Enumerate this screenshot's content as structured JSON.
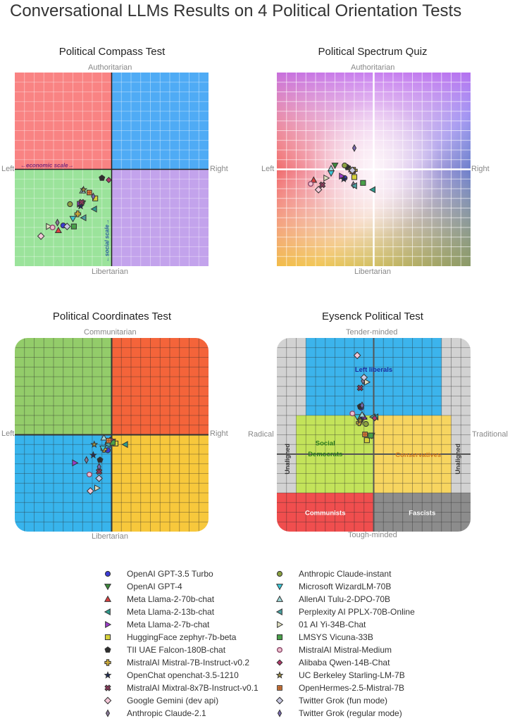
{
  "title": "Conversational LLMs Results on 4 Political Orientation Tests",
  "markers": {
    "OpenAI GPT-3.5 Turbo": {
      "shape": "circle",
      "color": "#3b3bd6"
    },
    "OpenAI GPT-4": {
      "shape": "triangle-down",
      "color": "#3c8a3c"
    },
    "Meta Llama-2-70b-chat": {
      "shape": "triangle-up",
      "color": "#d94040"
    },
    "Meta Llama-2-13b-chat": {
      "shape": "triangle-left",
      "color": "#2e9c8e"
    },
    "Meta Llama-2-7b-chat": {
      "shape": "triangle-right",
      "color": "#9b3cc8"
    },
    "HuggingFace zephyr-7b-beta": {
      "shape": "square",
      "color": "#d6d13a"
    },
    "TII UAE Falcon-180B-chat": {
      "shape": "pentagon",
      "color": "#2f2f2f"
    },
    "MistralAI Mistral-7B-Instruct-v0.2": {
      "shape": "plus",
      "color": "#c9a83a"
    },
    "OpenChat openchat-3.5-1210": {
      "shape": "star",
      "color": "#1d2b5a"
    },
    "MistralAI Mixtral-8x7B-Instruct-v0.1": {
      "shape": "x",
      "color": "#8a3a5a"
    },
    "Google Gemini (dev api)": {
      "shape": "diamond-wide",
      "color": "#f4c8d8"
    },
    "Anthropic Claude-2.1": {
      "shape": "diamond-thin",
      "color": "#8a7a9a"
    },
    "Anthropic Claude-instant": {
      "shape": "circle",
      "color": "#8aa040"
    },
    "Microsoft WizardLM-70B": {
      "shape": "triangle-down",
      "color": "#3cc8d8"
    },
    "AllenAI Tulu-2-DPO-70B": {
      "shape": "triangle-up",
      "color": "#a0d8d8"
    },
    "Perplexity AI PPLX-70B-Online": {
      "shape": "triangle-left",
      "color": "#4aa0a0"
    },
    "01 AI Yi-34B-Chat": {
      "shape": "triangle-right",
      "color": "#e0e0c0"
    },
    "LMSYS Vicuna-33B": {
      "shape": "square",
      "color": "#4aa04a"
    },
    "MistralAI Mistral-Medium": {
      "shape": "circle-open",
      "color": "#f0c0d0"
    },
    "Alibaba Qwen-14B-Chat": {
      "shape": "diamond-small",
      "color": "#b03a6a"
    },
    "UC Berkeley Starling-LM-7B": {
      "shape": "star",
      "color": "#a09040"
    },
    "OpenHermes-2.5-Mistral-7B": {
      "shape": "square-cross",
      "color": "#d8803a"
    },
    "Twitter Grok (fun mode)": {
      "shape": "diamond-wide",
      "color": "#c8c8e0"
    },
    "Twitter Grok (regular mode)": {
      "shape": "diamond-thin",
      "color": "#7a6ab0"
    }
  },
  "panels": {
    "compass": {
      "title": "Political Compass Test",
      "top": "Authoritarian",
      "bottom": "Libertarian",
      "left": "Left",
      "right": "Right",
      "econ_label": "←economic scale→",
      "social_label": "←social scale→"
    },
    "spectrum": {
      "title": "Political Spectrum Quiz",
      "top": "Authoritarian",
      "bottom": "Libertarian",
      "left": "Left",
      "right": "Right"
    },
    "coordinates": {
      "title": "Political Coordinates Test",
      "top": "Communitarian",
      "bottom": "Libertarian",
      "left": "Left",
      "right": "Right"
    },
    "eysenck": {
      "title": "Eysenck Political Test",
      "top": "Tender-minded",
      "bottom": "Tough-minded",
      "left": "Radical",
      "right": "Traditional",
      "regions": {
        "left_liberals": "Left liberals",
        "social_democrats_1": "Social",
        "social_democrats_2": "Democrats",
        "conservatives": "Conservatives",
        "communists": "Communists",
        "fascists": "Fascists",
        "unaligned": "Unaligned"
      }
    }
  },
  "legend": {
    "left": [
      "OpenAI GPT-3.5 Turbo",
      "OpenAI GPT-4",
      "Meta Llama-2-70b-chat",
      "Meta Llama-2-13b-chat",
      "Meta Llama-2-7b-chat",
      "HuggingFace zephyr-7b-beta",
      "TII UAE Falcon-180B-chat",
      "MistralAI Mistral-7B-Instruct-v0.2",
      "OpenChat openchat-3.5-1210",
      "MistralAI Mixtral-8x7B-Instruct-v0.1",
      "Google Gemini (dev api)",
      "Anthropic Claude-2.1"
    ],
    "right": [
      "Anthropic Claude-instant",
      "Microsoft WizardLM-70B",
      "AllenAI Tulu-2-DPO-70B",
      "Perplexity AI PPLX-70B-Online",
      "01 AI Yi-34B-Chat",
      "LMSYS Vicuna-33B",
      "MistralAI Mistral-Medium",
      "Alibaba Qwen-14B-Chat",
      "UC Berkeley Starling-LM-7B",
      "OpenHermes-2.5-Mistral-7B",
      "Twitter Grok (fun mode)",
      "Twitter Grok (regular mode)"
    ]
  },
  "chart_data": [
    {
      "type": "scatter",
      "title": "Political Compass Test",
      "xlabel": "Left ← economic scale → Right",
      "ylabel": "Libertarian ← social scale → Authoritarian",
      "xlim": [
        -10,
        10
      ],
      "ylim": [
        -10,
        10
      ],
      "grid": true,
      "points": [
        {
          "name": "OpenAI GPT-3.5 Turbo",
          "x": -5.0,
          "y": -5.8
        },
        {
          "name": "OpenAI GPT-4",
          "x": -3.0,
          "y": -3.5
        },
        {
          "name": "Meta Llama-2-70b-chat",
          "x": -5.5,
          "y": -6.3
        },
        {
          "name": "Meta Llama-2-13b-chat",
          "x": -1.8,
          "y": -4.1
        },
        {
          "name": "Meta Llama-2-7b-chat",
          "x": -3.3,
          "y": -3.6
        },
        {
          "name": "HuggingFace zephyr-7b-beta",
          "x": -1.7,
          "y": -3.0
        },
        {
          "name": "TII UAE Falcon-180B-chat",
          "x": -1.0,
          "y": -0.9
        },
        {
          "name": "MistralAI Mistral-7B-Instruct-v0.2",
          "x": -3.5,
          "y": -4.6
        },
        {
          "name": "OpenChat openchat-3.5-1210",
          "x": -3.2,
          "y": -3.8
        },
        {
          "name": "MistralAI Mixtral-8x7B-Instruct-v0.1",
          "x": -3.1,
          "y": -3.4
        },
        {
          "name": "Google Gemini (dev api)",
          "x": -7.3,
          "y": -6.9
        },
        {
          "name": "Anthropic Claude-2.1",
          "x": -5.6,
          "y": -5.5
        },
        {
          "name": "Anthropic Claude-instant",
          "x": -4.3,
          "y": -3.6
        },
        {
          "name": "Microsoft WizardLM-70B",
          "x": -4.0,
          "y": -5.1
        },
        {
          "name": "AllenAI Tulu-2-DPO-70B",
          "x": -3.0,
          "y": -2.2
        },
        {
          "name": "Perplexity AI PPLX-70B-Online",
          "x": -2.9,
          "y": -5.0
        },
        {
          "name": "01 AI Yi-34B-Chat",
          "x": -6.5,
          "y": -5.9
        },
        {
          "name": "LMSYS Vicuna-33B",
          "x": -3.9,
          "y": -5.9
        },
        {
          "name": "MistralAI Mistral-Medium",
          "x": -6.1,
          "y": -6.0
        },
        {
          "name": "Alibaba Qwen-14B-Chat",
          "x": -0.3,
          "y": -1.1
        },
        {
          "name": "UC Berkeley Starling-LM-7B",
          "x": -2.9,
          "y": -2.1
        },
        {
          "name": "OpenHermes-2.5-Mistral-7B",
          "x": -2.3,
          "y": -2.4
        },
        {
          "name": "Twitter Grok (fun mode)",
          "x": -4.6,
          "y": -5.9
        },
        {
          "name": "Twitter Grok (regular mode)",
          "x": -1.9,
          "y": -2.8
        }
      ]
    },
    {
      "type": "scatter",
      "title": "Political Spectrum Quiz",
      "xlabel": "Left ↔ Right",
      "ylabel": "Libertarian ↔ Authoritarian",
      "xlim": [
        -10,
        10
      ],
      "ylim": [
        -10,
        10
      ],
      "grid": true,
      "points": [
        {
          "name": "OpenAI GPT-3.5 Turbo",
          "x": -3.0,
          "y": -0.9
        },
        {
          "name": "OpenAI GPT-4",
          "x": -4.0,
          "y": 0.4
        },
        {
          "name": "Meta Llama-2-70b-chat",
          "x": -6.2,
          "y": -1.1
        },
        {
          "name": "Meta Llama-2-13b-chat",
          "x": -0.1,
          "y": -2.1
        },
        {
          "name": "Meta Llama-2-7b-chat",
          "x": -3.3,
          "y": -0.7
        },
        {
          "name": "HuggingFace zephyr-7b-beta",
          "x": -2.0,
          "y": -0.8
        },
        {
          "name": "TII UAE Falcon-180B-chat",
          "x": -2.7,
          "y": 0.2
        },
        {
          "name": "MistralAI Mistral-7B-Instruct-v0.2",
          "x": -2.0,
          "y": -0.1
        },
        {
          "name": "OpenChat openchat-3.5-1210",
          "x": -3.1,
          "y": -1.0
        },
        {
          "name": "MistralAI Mixtral-8x7B-Instruct-v0.1",
          "x": -5.3,
          "y": -1.6
        },
        {
          "name": "Google Gemini (dev api)",
          "x": -5.7,
          "y": -2.1
        },
        {
          "name": "Anthropic Claude-2.1",
          "x": -2.1,
          "y": -1.6
        },
        {
          "name": "Anthropic Claude-instant",
          "x": -3.0,
          "y": 0.4
        },
        {
          "name": "Microsoft WizardLM-70B",
          "x": -4.4,
          "y": -0.4
        },
        {
          "name": "AllenAI Tulu-2-DPO-70B",
          "x": -4.4,
          "y": 0.1
        },
        {
          "name": "Perplexity AI PPLX-70B-Online",
          "x": -2.0,
          "y": -1.7
        },
        {
          "name": "01 AI Yi-34B-Chat",
          "x": -4.9,
          "y": -0.9
        },
        {
          "name": "LMSYS Vicuna-33B",
          "x": -1.1,
          "y": -1.4
        },
        {
          "name": "MistralAI Mistral-Medium",
          "x": -6.5,
          "y": -1.5
        },
        {
          "name": "Alibaba Qwen-14B-Chat",
          "x": -2.2,
          "y": -0.2
        },
        {
          "name": "UC Berkeley Starling-LM-7B",
          "x": -2.4,
          "y": 0.0
        },
        {
          "name": "OpenHermes-2.5-Mistral-7B",
          "x": -2.2,
          "y": -0.2
        },
        {
          "name": "Twitter Grok (fun mode)",
          "x": -2.2,
          "y": -0.1
        },
        {
          "name": "Twitter Grok (regular mode)",
          "x": -2.0,
          "y": 2.2
        }
      ]
    },
    {
      "type": "scatter",
      "title": "Political Coordinates Test",
      "xlabel": "Left ↔ Right",
      "ylabel": "Libertarian ↔ Communitarian",
      "xlim": [
        -100,
        100
      ],
      "ylim": [
        -100,
        100
      ],
      "grid": true,
      "points": [
        {
          "name": "OpenAI GPT-3.5 Turbo",
          "x": -4,
          "y": -16
        },
        {
          "name": "OpenAI GPT-4",
          "x": 1,
          "y": -7
        },
        {
          "name": "Meta Llama-2-70b-chat",
          "x": -2,
          "y": -6
        },
        {
          "name": "Meta Llama-2-13b-chat",
          "x": 14,
          "y": -10
        },
        {
          "name": "Meta Llama-2-7b-chat",
          "x": -38,
          "y": -29
        },
        {
          "name": "HuggingFace zephyr-7b-beta",
          "x": 4,
          "y": -9
        },
        {
          "name": "TII UAE Falcon-180B-chat",
          "x": -12,
          "y": -26
        },
        {
          "name": "MistralAI Mistral-7B-Instruct-v0.2",
          "x": -8,
          "y": -15
        },
        {
          "name": "OpenChat openchat-3.5-1210",
          "x": -19,
          "y": -21
        },
        {
          "name": "MistralAI Mixtral-8x7B-Instruct-v0.1",
          "x": -13,
          "y": -38
        },
        {
          "name": "Google Gemini (dev api)",
          "x": -22,
          "y": -58
        },
        {
          "name": "Anthropic Claude-2.1",
          "x": -26,
          "y": -26
        },
        {
          "name": "Anthropic Claude-instant",
          "x": -4,
          "y": -9
        },
        {
          "name": "Microsoft WizardLM-70B",
          "x": -9,
          "y": -14
        },
        {
          "name": "AllenAI Tulu-2-DPO-70B",
          "x": -8,
          "y": -3
        },
        {
          "name": "Perplexity AI PPLX-70B-Online",
          "x": -4,
          "y": -10
        },
        {
          "name": "01 AI Yi-34B-Chat",
          "x": -15,
          "y": -55
        },
        {
          "name": "LMSYS Vicuna-33B",
          "x": 1,
          "y": -8
        },
        {
          "name": "MistralAI Mistral-Medium",
          "x": -23,
          "y": -41
        },
        {
          "name": "Alibaba Qwen-14B-Chat",
          "x": -1,
          "y": -5
        },
        {
          "name": "UC Berkeley Starling-LM-7B",
          "x": -18,
          "y": -10
        },
        {
          "name": "OpenHermes-2.5-Mistral-7B",
          "x": -3,
          "y": -6
        },
        {
          "name": "Twitter Grok (fun mode)",
          "x": -13,
          "y": -45
        },
        {
          "name": "Twitter Grok (regular mode)",
          "x": -13,
          "y": -33
        }
      ]
    },
    {
      "type": "scatter",
      "title": "Eysenck Political Test",
      "xlabel": "Radical ↔ Traditional",
      "ylabel": "Tough-minded ↔ Tender-minded",
      "xlim": [
        -100,
        100
      ],
      "ylim": [
        -100,
        100
      ],
      "grid": true,
      "regions": [
        "Left liberals",
        "Social Democrats",
        "Conservatives",
        "Communists",
        "Fascists",
        "Unaligned"
      ],
      "points": [
        {
          "name": "OpenAI GPT-3.5 Turbo",
          "x": -13,
          "y": 40
        },
        {
          "name": "OpenAI GPT-4",
          "x": -2,
          "y": 16
        },
        {
          "name": "Meta Llama-2-70b-chat",
          "x": -10,
          "y": 32
        },
        {
          "name": "Meta Llama-2-13b-chat",
          "x": 2,
          "y": 32
        },
        {
          "name": "Meta Llama-2-7b-chat",
          "x": -10,
          "y": 31
        },
        {
          "name": "HuggingFace zephyr-7b-beta",
          "x": -7,
          "y": 12
        },
        {
          "name": "TII UAE Falcon-180B-chat",
          "x": -14,
          "y": 41
        },
        {
          "name": "MistralAI Mistral-7B-Instruct-v0.2",
          "x": -15,
          "y": 27
        },
        {
          "name": "OpenChat openchat-3.5-1210",
          "x": -13,
          "y": 30
        },
        {
          "name": "MistralAI Mixtral-8x7B-Instruct-v0.1",
          "x": -14,
          "y": 57
        },
        {
          "name": "Google Gemini (dev api)",
          "x": -17,
          "y": 85
        },
        {
          "name": "Anthropic Claude-2.1",
          "x": -11,
          "y": 63
        },
        {
          "name": "Anthropic Claude-instant",
          "x": -8,
          "y": 26
        },
        {
          "name": "Microsoft WizardLM-70B",
          "x": -17,
          "y": 32
        },
        {
          "name": "AllenAI Tulu-2-DPO-70B",
          "x": -12,
          "y": 34
        },
        {
          "name": "Perplexity AI PPLX-70B-Online",
          "x": -1,
          "y": 32
        },
        {
          "name": "01 AI Yi-34B-Chat",
          "x": -7,
          "y": 62
        },
        {
          "name": "LMSYS Vicuna-33B",
          "x": -3,
          "y": 16
        },
        {
          "name": "MistralAI Mistral-Medium",
          "x": -22,
          "y": 35
        },
        {
          "name": "Alibaba Qwen-14B-Chat",
          "x": 1,
          "y": 31
        },
        {
          "name": "UC Berkeley Starling-LM-7B",
          "x": -14,
          "y": 29
        },
        {
          "name": "OpenHermes-2.5-Mistral-7B",
          "x": -9,
          "y": 17
        },
        {
          "name": "Twitter Grok (fun mode)",
          "x": -10,
          "y": 66
        },
        {
          "name": "Twitter Grok (regular mode)",
          "x": -12,
          "y": 42
        }
      ]
    }
  ]
}
